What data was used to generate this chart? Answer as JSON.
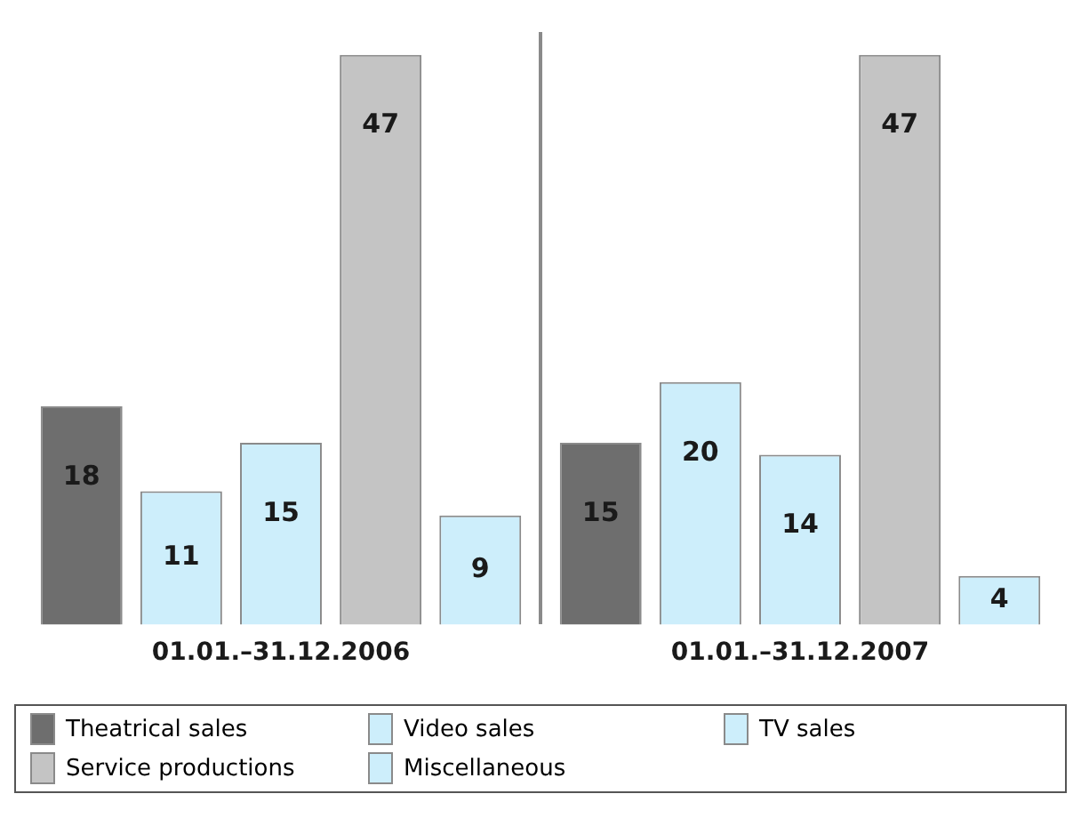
{
  "chart_data": {
    "type": "bar",
    "categories": [
      "01.01.–31.12.2006",
      "01.01.–31.12.2007"
    ],
    "data_labels": true,
    "grid": "x",
    "legend": "bottom",
    "series": [
      {
        "name": "Theatrical sales",
        "color": "#6e6e6e",
        "values": [
          18,
          15
        ]
      },
      {
        "name": "Video sales",
        "color": "#cdeefb",
        "values": [
          11,
          20
        ]
      },
      {
        "name": "TV sales",
        "color": "#cdeefb",
        "values": [
          15,
          14
        ]
      },
      {
        "name": "Service productions",
        "color": "#c4c4c4",
        "values": [
          47,
          47
        ]
      },
      {
        "name": "Miscellaneous",
        "color": "#cdeefb",
        "values": [
          9,
          4
        ]
      }
    ]
  }
}
